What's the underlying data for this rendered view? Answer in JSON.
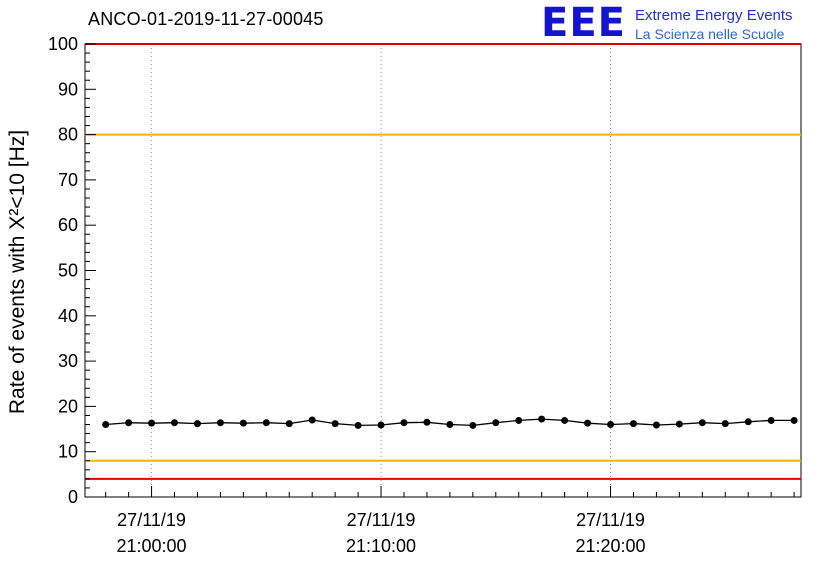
{
  "header": {
    "plot_title": "ANCO-01-2019-11-27-00045",
    "logo": {
      "acronym": "EEE",
      "line1": "Extreme Energy Events",
      "line2": "La Scienza nelle Scuole",
      "accent_color": "#1414cc"
    }
  },
  "chart_data": {
    "type": "line",
    "title": "ANCO-01-2019-11-27-00045",
    "ylabel": "Rate of events with X²<10 [Hz]",
    "xlabel": "",
    "ylim": [
      0,
      100
    ],
    "yticks": [
      0,
      10,
      20,
      30,
      40,
      50,
      60,
      70,
      80,
      90,
      100
    ],
    "yminor_step": 2,
    "xlim_minutes": [
      -2.9,
      28.3
    ],
    "xminor_step_minutes": 1,
    "xticks": [
      {
        "minute": 0,
        "label_line1": "27/11/19",
        "label_line2": "21:00:00"
      },
      {
        "minute": 10,
        "label_line1": "27/11/19",
        "label_line2": "21:10:00"
      },
      {
        "minute": 20,
        "label_line1": "27/11/19",
        "label_line2": "21:20:00"
      }
    ],
    "grid": "dotted-vertical-at-xticks",
    "grid_color": "#999999",
    "reference_lines": [
      {
        "name": "upper-alarm",
        "value": 100,
        "color": "#dd0000"
      },
      {
        "name": "upper-warning",
        "value": 80,
        "color": "#ffb300"
      },
      {
        "name": "lower-warning",
        "value": 8,
        "color": "#ffb300"
      },
      {
        "name": "lower-alarm",
        "value": 4,
        "color": "#dd0000"
      }
    ],
    "series": [
      {
        "name": "event-rate",
        "color": "#000000",
        "marker": "circle",
        "marker_radius": 3.5,
        "yerr": 0.6,
        "x_minutes": [
          -2,
          -1,
          0,
          1,
          2,
          3,
          4,
          5,
          6,
          7,
          8,
          9,
          10,
          11,
          12,
          13,
          14,
          15,
          16,
          17,
          18,
          19,
          20,
          21,
          22,
          23,
          24,
          25,
          26,
          27,
          28
        ],
        "values": [
          16.0,
          16.4,
          16.3,
          16.4,
          16.2,
          16.4,
          16.3,
          16.4,
          16.2,
          17.0,
          16.2,
          15.8,
          15.9,
          16.4,
          16.5,
          16.0,
          15.8,
          16.4,
          16.9,
          17.2,
          16.9,
          16.3,
          16.0,
          16.2,
          15.9,
          16.1,
          16.4,
          16.2,
          16.6,
          16.9,
          16.9
        ]
      }
    ]
  }
}
